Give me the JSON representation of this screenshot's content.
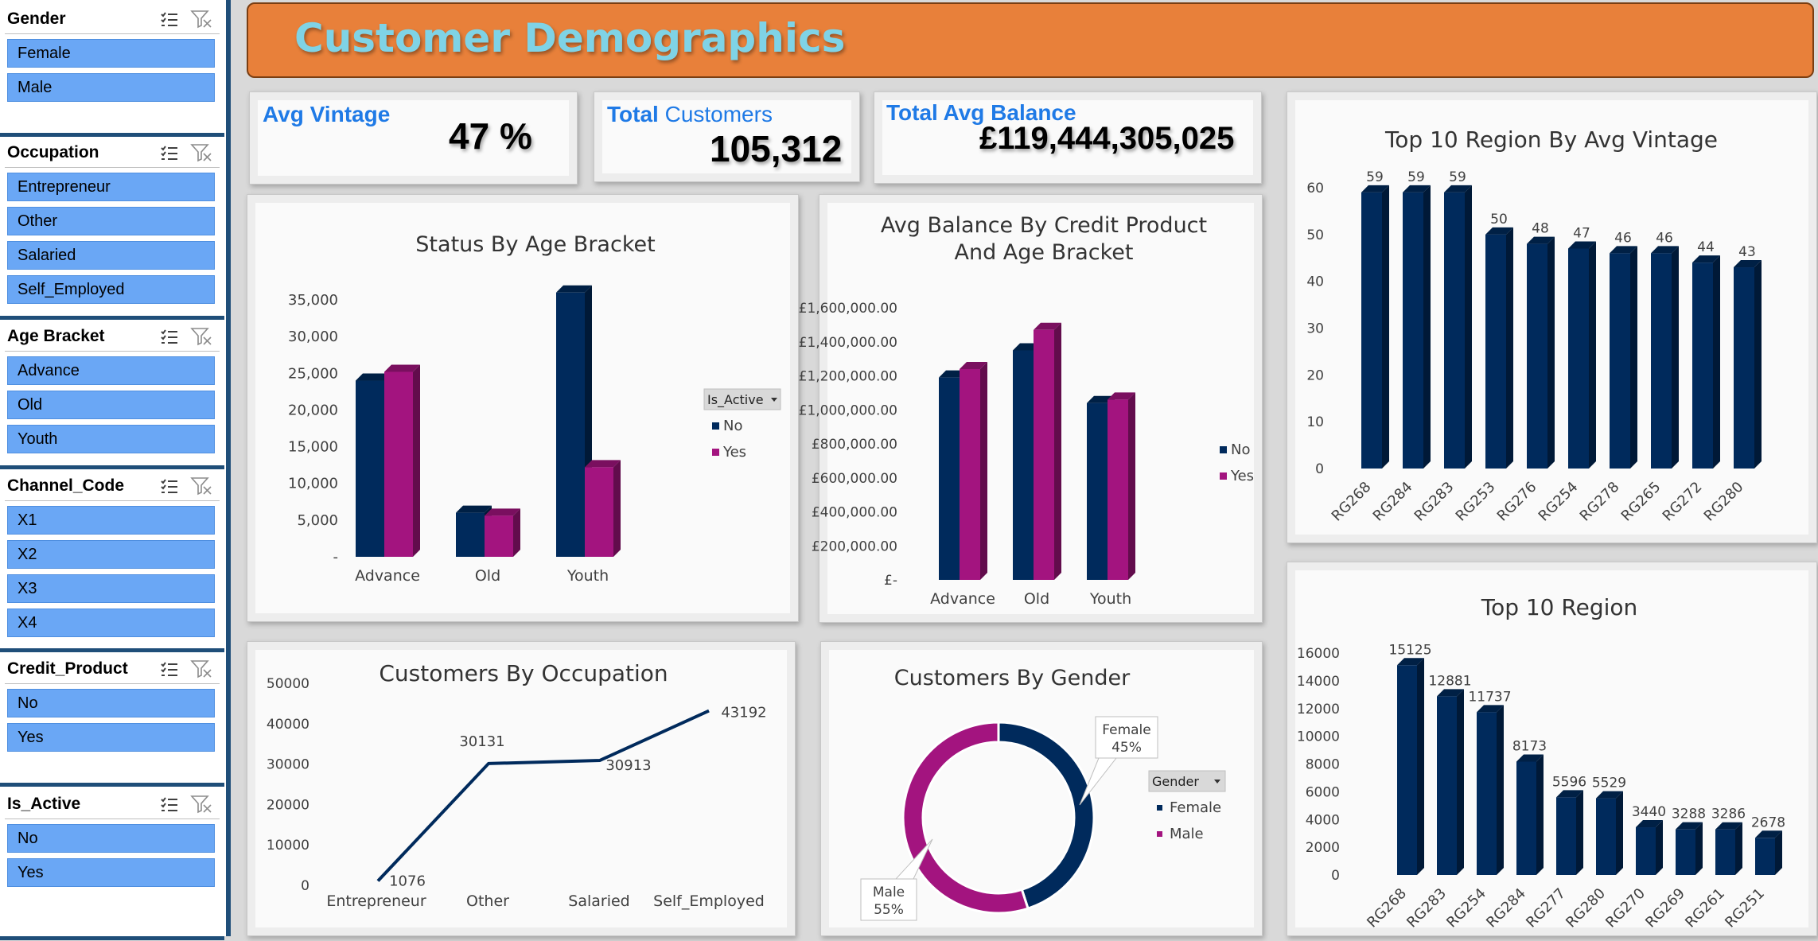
{
  "slicers": [
    {
      "title": "Gender",
      "items": [
        "Female",
        "Male"
      ]
    },
    {
      "title": "Occupation",
      "items": [
        "Entrepreneur",
        "Other",
        "Salaried",
        "Self_Employed"
      ]
    },
    {
      "title": "Age Bracket",
      "items": [
        "Advance",
        "Old",
        "Youth"
      ]
    },
    {
      "title": "Channel_Code",
      "items": [
        "X1",
        "X2",
        "X3",
        "X4"
      ]
    },
    {
      "title": "Credit_Product",
      "items": [
        "No",
        "Yes"
      ]
    },
    {
      "title": "Is_Active",
      "items": [
        "No",
        "Yes"
      ]
    }
  ],
  "header": {
    "title": "Customer Demographics"
  },
  "kpis": {
    "avg_vintage": {
      "label": "Avg Vintage",
      "value": "47 %"
    },
    "total_customers": {
      "label_bold": "Total",
      "label_light": " Customers",
      "value": "105,312"
    },
    "total_avg_balance": {
      "label": "Total Avg Balance",
      "value": "£119,444,305,025"
    }
  },
  "colors": {
    "no": "#002a5c",
    "yes": "#a3147f",
    "female": "#002a5c",
    "male": "#a3147f",
    "bar": "#002a5c"
  },
  "chart_data": [
    {
      "id": "status_by_age",
      "type": "bar",
      "title": "Status By Age Bracket",
      "categories": [
        "Advance",
        "Old",
        "Youth"
      ],
      "legend_title": "Is_Active",
      "series": [
        {
          "name": "No",
          "values": [
            24000,
            6000,
            36000
          ]
        },
        {
          "name": "Yes",
          "values": [
            25200,
            5600,
            12200
          ]
        }
      ],
      "yticks": [
        "35,000",
        "30,000",
        "25,000",
        "20,000",
        "15,000",
        "10,000",
        "5,000",
        "-"
      ],
      "ylim": [
        0,
        35000
      ]
    },
    {
      "id": "balance_by_credit",
      "type": "bar",
      "title": "Avg Balance By Credit Product And Age Bracket",
      "title_lines": [
        "Avg Balance By Credit Product",
        "And Age Bracket"
      ],
      "categories": [
        "Advance",
        "Old",
        "Youth"
      ],
      "series": [
        {
          "name": "No",
          "values": [
            1190000,
            1350000,
            1040000
          ]
        },
        {
          "name": "Yes",
          "values": [
            1240000,
            1470000,
            1060000
          ]
        }
      ],
      "yticks": [
        "£1,600,000.00",
        "£1,400,000.00",
        "£1,200,000.00",
        "£1,000,000.00",
        "£800,000.00",
        "£600,000.00",
        "£400,000.00",
        "£200,000.00",
        "£-"
      ],
      "ylim": [
        0,
        1600000
      ]
    },
    {
      "id": "top10_vintage",
      "type": "bar",
      "title": "Top 10  Region By Avg Vintage",
      "categories": [
        "RG268",
        "RG284",
        "RG283",
        "RG253",
        "RG276",
        "RG254",
        "RG278",
        "RG265",
        "RG272",
        "RG280"
      ],
      "values": [
        59,
        59,
        59,
        50,
        48,
        47,
        46,
        46,
        44,
        43
      ],
      "yticks": [
        "60",
        "50",
        "40",
        "30",
        "20",
        "10",
        "0"
      ],
      "ylim": [
        0,
        60
      ]
    },
    {
      "id": "occupation",
      "type": "line",
      "title": "Customers By Occupation",
      "categories": [
        "Entrepreneur",
        "Other",
        "Salaried",
        "Self_Employed"
      ],
      "values": [
        1076,
        30131,
        30913,
        43192
      ],
      "yticks": [
        "50000",
        "40000",
        "30000",
        "20000",
        "10000",
        "0"
      ],
      "ylim": [
        0,
        50000
      ]
    },
    {
      "id": "gender",
      "type": "pie",
      "title": "Customers  By Gender",
      "legend_title": "Gender",
      "slices": [
        {
          "name": "Female",
          "label": "Female",
          "pct_label": "45%",
          "value": 45
        },
        {
          "name": "Male",
          "label": "Male",
          "pct_label": "55%",
          "value": 55
        }
      ]
    },
    {
      "id": "top10_region",
      "type": "bar",
      "title": "Top 10 Region",
      "categories": [
        "RG268",
        "RG283",
        "RG254",
        "RG284",
        "RG277",
        "RG280",
        "RG270",
        "RG269",
        "RG261",
        "RG251"
      ],
      "values": [
        15125,
        12881,
        11737,
        8173,
        5596,
        5529,
        3440,
        3288,
        3286,
        2678
      ],
      "yticks": [
        "16000",
        "14000",
        "12000",
        "10000",
        "8000",
        "6000",
        "4000",
        "2000",
        "0"
      ],
      "ylim": [
        0,
        16000
      ]
    }
  ]
}
